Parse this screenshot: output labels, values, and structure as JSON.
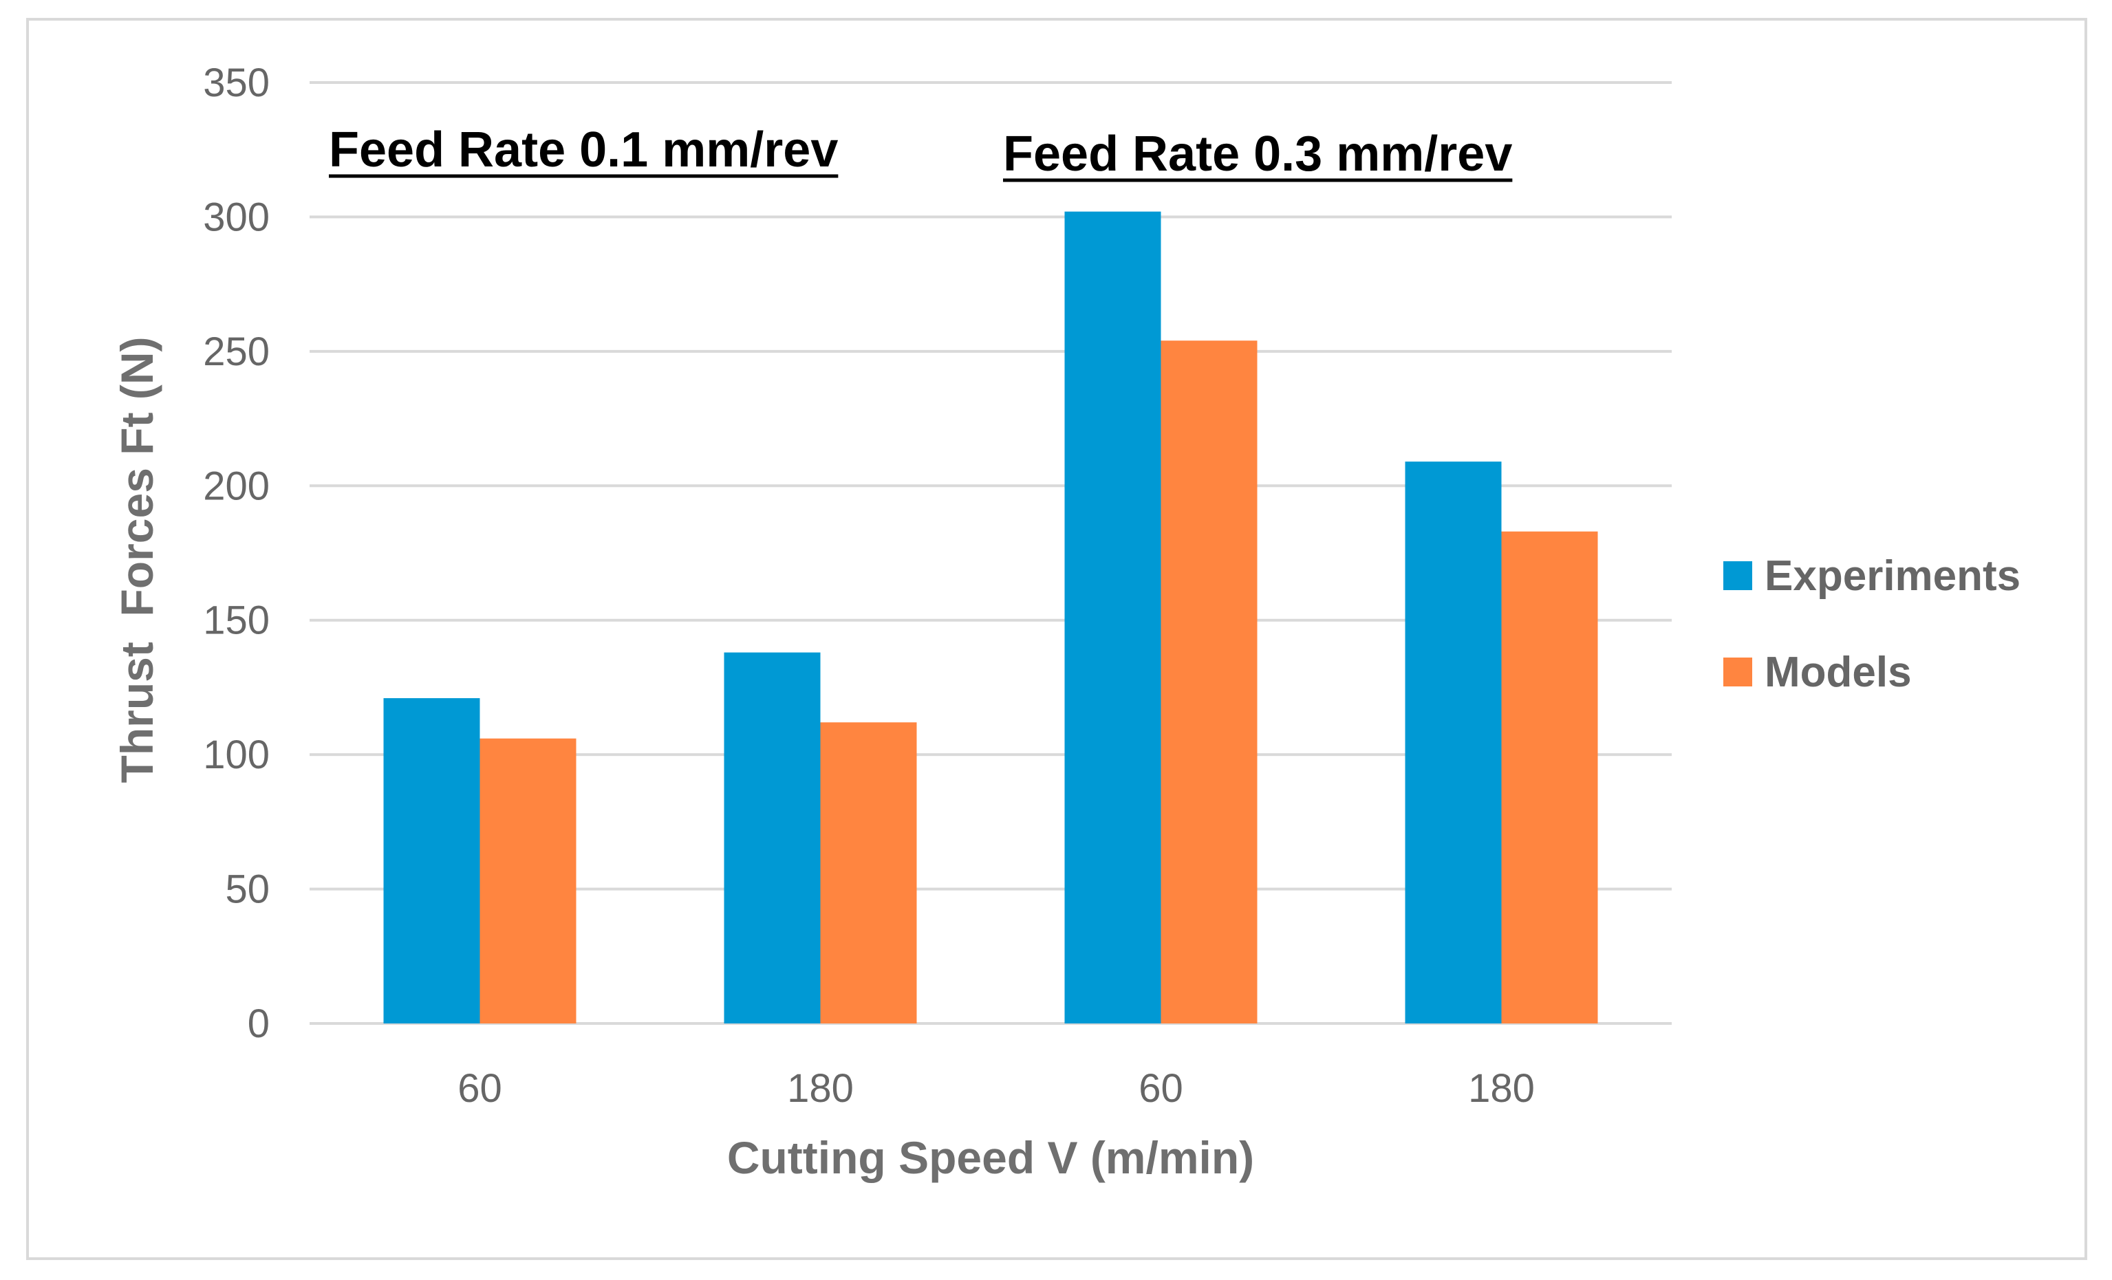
{
  "chart_data": {
    "type": "bar",
    "title": "",
    "xlabel": "Cutting Speed V (m/min)",
    "ylabel": "Thrust  Forces Ft (N)",
    "ylim": [
      0,
      350
    ],
    "yticks": [
      0,
      50,
      100,
      150,
      200,
      250,
      300,
      350
    ],
    "grid": true,
    "legend_position": "right",
    "categories": [
      "60",
      "180",
      "60",
      "180"
    ],
    "series": [
      {
        "name": "Experiments",
        "color": "#0099d4",
        "values": [
          121,
          138,
          302,
          209
        ]
      },
      {
        "name": "Models",
        "color": "#ff8540",
        "values": [
          106,
          112,
          254,
          183
        ]
      }
    ],
    "annotations": [
      {
        "text": "Feed Rate 0.1 mm/rev",
        "group": "left",
        "underline": true
      },
      {
        "text": "Feed Rate 0.3 mm/rev",
        "group": "right",
        "underline": true
      }
    ]
  }
}
